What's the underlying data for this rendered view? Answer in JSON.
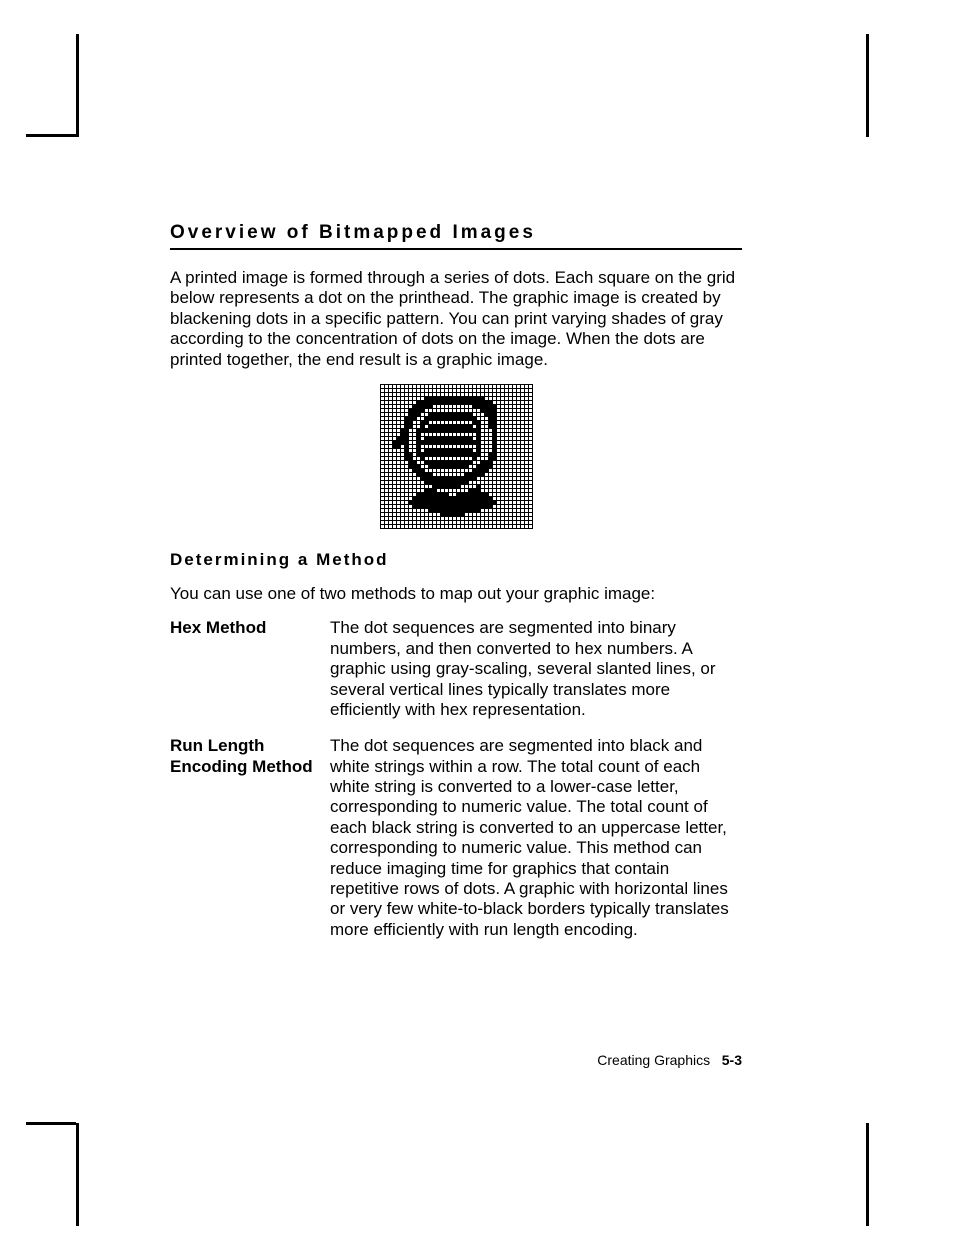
{
  "heading": "Overview of Bitmapped Images",
  "intro": "A printed image is formed through a series of dots.  Each square on the grid below represents a dot on the printhead.  The graphic image is created by blackening dots in a specific pattern.  You can print varying shades of gray according to the concentration of dots on the image.  When the dots are printed together, the end result is a graphic image.",
  "subheading": "Determining a Method",
  "sub_intro": "You can use one of two methods to map out your graphic image:",
  "defs": [
    {
      "term": "Hex Method",
      "def": "The dot sequences are segmented into binary numbers, and then converted to hex numbers.  A graphic using gray-scaling, several slanted lines, or several vertical lines typically translates more efficiently with hex representation."
    },
    {
      "term": "Run Length Encoding Method",
      "def": "The dot sequences are segmented into black and white strings within a row.  The total count of each white string is converted to a lower-case letter, corresponding to numeric value.  The total count of each black string is converted to an uppercase letter, corresponding to numeric value.  This method can reduce imaging time for graphics that contain repetitive rows of dots.  A graphic with horizontal lines or very few white-to-black borders typically translates more efficiently with run length encoding."
    }
  ],
  "footer_section": "Creating Graphics",
  "footer_page": "5-3",
  "bitmap": {
    "cols": 38,
    "rows": [
      "00000000000000000000000000000000000000",
      "00000000000000000000000000000000000000",
      "00000000000000000000000000000000000000",
      "00000000000111111111111111000000000000",
      "00000000011111111111111111110000000000",
      "00000000111110000000000111111000000000",
      "00000001111000000000000001111000000000",
      "00000001110011111111111000111000000000",
      "00000011100111111111111100011000000000",
      "00000011001100000000000110011000000000",
      "00000011001011111111111010011000000000",
      "00000110011111111111111110001000000000",
      "00000110010000000000000010001000000000",
      "00001110010111111111111010001000000000",
      "00011110011111111111111110001000000000",
      "00011010010000000000000010001000000000",
      "00000010010111111111111010001000000000",
      "00000011011111111111111110011000000000",
      "00000011001000000000000100011000000000",
      "00000001100111111111111001110000000000",
      "00000001110011111111110011110000000000",
      "00000000111000000000000111100000000000",
      "00000000011110000000011111000000000000",
      "00000000001111111111111100000000000000",
      "00000000000111111111110000000000000000",
      "00000000000001111111000010000000000000",
      "00000000000111000000001110000000000000",
      "00000000011111111001111111100000000000",
      "00000000111111111111111111110000000000",
      "00000001111111111111111111111000000000",
      "00000000111111111111111111110000000000",
      "00000000000011111111111110000000000000",
      "00000000000000011111100000000000000000",
      "00000000000000000000000000000000000000",
      "00000000000000000000000000000000000000",
      "00000000000000000000000000000000000000"
    ]
  }
}
